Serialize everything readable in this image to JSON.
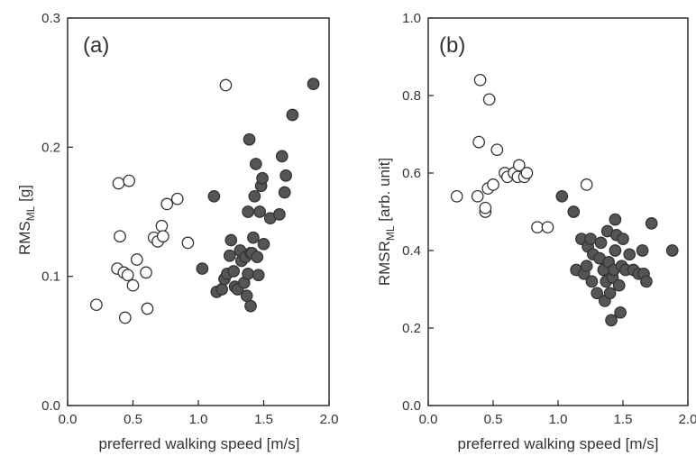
{
  "chart_data": [
    {
      "type": "scatter",
      "panel_label": "(a)",
      "ylabel_main": "RMS",
      "ylabel_sub": "ML",
      "ylabel_suffix": " [g]",
      "xlabel": "preferred walking speed [m/s]",
      "xlim": [
        0,
        2.0
      ],
      "ylim": [
        0,
        0.3
      ],
      "xticks": [
        "0.0",
        "0.5",
        "1.0",
        "1.5",
        "2.0"
      ],
      "xtick_values": [
        0,
        0.5,
        1.0,
        1.5,
        2.0
      ],
      "yticks": [
        "0.0",
        "0.1",
        "0.2",
        "0.3"
      ],
      "ytick_values": [
        0,
        0.1,
        0.2,
        0.3
      ],
      "series": [
        {
          "fill": "#ffffff",
          "stroke": "#333333",
          "points": [
            [
              0.22,
              0.078
            ],
            [
              0.38,
              0.106
            ],
            [
              0.39,
              0.172
            ],
            [
              0.4,
              0.131
            ],
            [
              0.43,
              0.103
            ],
            [
              0.44,
              0.068
            ],
            [
              0.46,
              0.101
            ],
            [
              0.47,
              0.174
            ],
            [
              0.5,
              0.093
            ],
            [
              0.53,
              0.113
            ],
            [
              0.6,
              0.103
            ],
            [
              0.61,
              0.075
            ],
            [
              0.66,
              0.13
            ],
            [
              0.69,
              0.127
            ],
            [
              0.72,
              0.139
            ],
            [
              0.73,
              0.131
            ],
            [
              0.76,
              0.156
            ],
            [
              0.84,
              0.16
            ],
            [
              0.92,
              0.126
            ],
            [
              1.21,
              0.248
            ]
          ]
        },
        {
          "fill": "#555555",
          "stroke": "#333333",
          "points": [
            [
              1.03,
              0.106
            ],
            [
              1.12,
              0.162
            ],
            [
              1.14,
              0.088
            ],
            [
              1.18,
              0.09
            ],
            [
              1.2,
              0.098
            ],
            [
              1.22,
              0.102
            ],
            [
              1.24,
              0.116
            ],
            [
              1.25,
              0.128
            ],
            [
              1.27,
              0.104
            ],
            [
              1.28,
              0.092
            ],
            [
              1.3,
              0.09
            ],
            [
              1.32,
              0.12
            ],
            [
              1.33,
              0.112
            ],
            [
              1.35,
              0.095
            ],
            [
              1.36,
              0.115
            ],
            [
              1.37,
              0.085
            ],
            [
              1.38,
              0.102
            ],
            [
              1.38,
              0.15
            ],
            [
              1.39,
              0.206
            ],
            [
              1.4,
              0.118
            ],
            [
              1.4,
              0.077
            ],
            [
              1.41,
              0.118
            ],
            [
              1.42,
              0.13
            ],
            [
              1.43,
              0.162
            ],
            [
              1.44,
              0.187
            ],
            [
              1.45,
              0.115
            ],
            [
              1.46,
              0.101
            ],
            [
              1.47,
              0.15
            ],
            [
              1.48,
              0.17
            ],
            [
              1.49,
              0.176
            ],
            [
              1.5,
              0.125
            ],
            [
              1.55,
              0.145
            ],
            [
              1.62,
              0.148
            ],
            [
              1.64,
              0.193
            ],
            [
              1.66,
              0.165
            ],
            [
              1.67,
              0.178
            ],
            [
              1.72,
              0.225
            ],
            [
              1.88,
              0.249
            ]
          ]
        }
      ]
    },
    {
      "type": "scatter",
      "panel_label": "(b)",
      "ylabel_main": "RMSR",
      "ylabel_sub": "ML",
      "ylabel_suffix": " [arb. unit]",
      "xlabel": "preferred walking speed [m/s]",
      "xlim": [
        0,
        2.0
      ],
      "ylim": [
        0,
        1.0
      ],
      "xticks": [
        "0.0",
        "0.5",
        "1.0",
        "1.5",
        "2.0"
      ],
      "xtick_values": [
        0,
        0.5,
        1.0,
        1.5,
        2.0
      ],
      "yticks": [
        "0.0",
        "0.2",
        "0.4",
        "0.6",
        "0.8",
        "1.0"
      ],
      "ytick_values": [
        0,
        0.2,
        0.4,
        0.6,
        0.8,
        1.0
      ],
      "series": [
        {
          "fill": "#ffffff",
          "stroke": "#333333",
          "points": [
            [
              0.22,
              0.54
            ],
            [
              0.38,
              0.54
            ],
            [
              0.39,
              0.68
            ],
            [
              0.4,
              0.84
            ],
            [
              0.44,
              0.5
            ],
            [
              0.44,
              0.51
            ],
            [
              0.46,
              0.56
            ],
            [
              0.47,
              0.79
            ],
            [
              0.5,
              0.57
            ],
            [
              0.53,
              0.66
            ],
            [
              0.59,
              0.6
            ],
            [
              0.61,
              0.59
            ],
            [
              0.66,
              0.6
            ],
            [
              0.69,
              0.59
            ],
            [
              0.7,
              0.62
            ],
            [
              0.74,
              0.59
            ],
            [
              0.76,
              0.6
            ],
            [
              0.84,
              0.46
            ],
            [
              0.92,
              0.46
            ],
            [
              1.22,
              0.57
            ]
          ]
        },
        {
          "fill": "#555555",
          "stroke": "#333333",
          "points": [
            [
              1.03,
              0.54
            ],
            [
              1.12,
              0.5
            ],
            [
              1.14,
              0.35
            ],
            [
              1.18,
              0.43
            ],
            [
              1.2,
              0.34
            ],
            [
              1.22,
              0.36
            ],
            [
              1.23,
              0.41
            ],
            [
              1.25,
              0.43
            ],
            [
              1.26,
              0.32
            ],
            [
              1.27,
              0.39
            ],
            [
              1.3,
              0.29
            ],
            [
              1.32,
              0.38
            ],
            [
              1.33,
              0.42
            ],
            [
              1.35,
              0.35
            ],
            [
              1.36,
              0.27
            ],
            [
              1.37,
              0.32
            ],
            [
              1.38,
              0.45
            ],
            [
              1.39,
              0.37
            ],
            [
              1.4,
              0.29
            ],
            [
              1.41,
              0.22
            ],
            [
              1.42,
              0.33
            ],
            [
              1.43,
              0.35
            ],
            [
              1.44,
              0.48
            ],
            [
              1.44,
              0.4
            ],
            [
              1.45,
              0.44
            ],
            [
              1.47,
              0.31
            ],
            [
              1.48,
              0.24
            ],
            [
              1.49,
              0.36
            ],
            [
              1.5,
              0.43
            ],
            [
              1.52,
              0.35
            ],
            [
              1.55,
              0.39
            ],
            [
              1.58,
              0.35
            ],
            [
              1.62,
              0.34
            ],
            [
              1.65,
              0.4
            ],
            [
              1.66,
              0.34
            ],
            [
              1.68,
              0.32
            ],
            [
              1.72,
              0.47
            ],
            [
              1.88,
              0.4
            ]
          ]
        }
      ]
    }
  ]
}
